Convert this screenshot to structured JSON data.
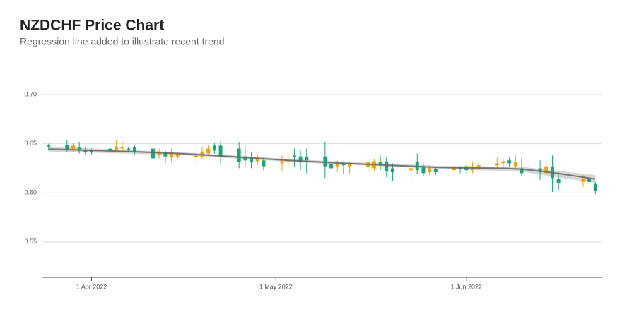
{
  "chart_data": {
    "type": "candlestick",
    "title": "NZDCHF Price Chart",
    "subtitle": "Regression line added to illustrate recent trend",
    "up_color": "#1aa67a",
    "down_color": "#f5a000",
    "trend_color": "#666666",
    "band_color": "#cccccc",
    "grid": true,
    "xlim": [
      "2022-03-24",
      "2022-06-23"
    ],
    "ylim": [
      0.514,
      0.72
    ],
    "yticks": [
      {
        "value": 0.55,
        "label": "0.55"
      },
      {
        "value": 0.6,
        "label": "0.60"
      },
      {
        "value": 0.65,
        "label": "0.65"
      },
      {
        "value": 0.7,
        "label": "0.70"
      }
    ],
    "xticks": [
      {
        "value": "2022-04-01",
        "label": "1 Apr 2022"
      },
      {
        "value": "2022-05-01",
        "label": "1 May 2022"
      },
      {
        "value": "2022-06-01",
        "label": "1 Jun 2022"
      }
    ],
    "x": [
      "2022-03-25",
      "2022-03-28",
      "2022-03-29",
      "2022-03-30",
      "2022-03-31",
      "2022-04-01",
      "2022-04-04",
      "2022-04-05",
      "2022-04-06",
      "2022-04-07",
      "2022-04-08",
      "2022-04-11",
      "2022-04-12",
      "2022-04-13",
      "2022-04-14",
      "2022-04-15",
      "2022-04-18",
      "2022-04-19",
      "2022-04-20",
      "2022-04-21",
      "2022-04-22",
      "2022-04-25",
      "2022-04-26",
      "2022-04-27",
      "2022-04-28",
      "2022-04-29",
      "2022-05-02",
      "2022-05-03",
      "2022-05-04",
      "2022-05-05",
      "2022-05-06",
      "2022-05-09",
      "2022-05-10",
      "2022-05-11",
      "2022-05-12",
      "2022-05-13",
      "2022-05-16",
      "2022-05-17",
      "2022-05-18",
      "2022-05-19",
      "2022-05-20",
      "2022-05-23",
      "2022-05-24",
      "2022-05-25",
      "2022-05-26",
      "2022-05-27",
      "2022-05-30",
      "2022-05-31",
      "2022-06-01",
      "2022-06-02",
      "2022-06-03",
      "2022-06-06",
      "2022-06-07",
      "2022-06-08",
      "2022-06-09",
      "2022-06-10",
      "2022-06-13",
      "2022-06-14",
      "2022-06-15",
      "2022-06-16",
      "2022-06-20",
      "2022-06-21",
      "2022-06-22"
    ],
    "open": [
      0.647,
      0.644,
      0.648,
      0.643,
      0.641,
      0.641,
      0.643,
      0.647,
      0.646,
      0.644,
      0.641,
      0.635,
      0.642,
      0.637,
      0.641,
      0.64,
      0.638,
      0.642,
      0.645,
      0.643,
      0.637,
      0.631,
      0.633,
      0.631,
      0.636,
      0.627,
      0.632,
      0.633,
      0.636,
      0.631,
      0.633,
      0.627,
      0.625,
      0.63,
      0.628,
      0.629,
      0.631,
      0.632,
      0.629,
      0.622,
      0.621,
      0.625,
      0.623,
      0.62,
      0.625,
      0.621,
      0.626,
      0.624,
      0.623,
      0.627,
      0.628,
      0.63,
      0.632,
      0.63,
      0.631,
      0.62,
      0.621,
      0.627,
      0.615,
      0.61,
      0.614,
      0.611,
      0.602
    ],
    "high": [
      0.65,
      0.654,
      0.651,
      0.652,
      0.647,
      0.645,
      0.648,
      0.654,
      0.652,
      0.647,
      0.648,
      0.648,
      0.645,
      0.644,
      0.645,
      0.642,
      0.644,
      0.647,
      0.649,
      0.651,
      0.652,
      0.652,
      0.648,
      0.641,
      0.639,
      0.636,
      0.638,
      0.64,
      0.645,
      0.643,
      0.645,
      0.652,
      0.632,
      0.633,
      0.632,
      0.632,
      0.632,
      0.634,
      0.638,
      0.636,
      0.63,
      0.628,
      0.64,
      0.63,
      0.628,
      0.626,
      0.63,
      0.627,
      0.63,
      0.631,
      0.632,
      0.636,
      0.635,
      0.636,
      0.638,
      0.635,
      0.633,
      0.631,
      0.638,
      0.621,
      0.618,
      0.616,
      0.611
    ],
    "low": [
      0.643,
      0.642,
      0.641,
      0.64,
      0.638,
      0.639,
      0.637,
      0.641,
      0.64,
      0.642,
      0.639,
      0.634,
      0.635,
      0.63,
      0.632,
      0.634,
      0.63,
      0.634,
      0.638,
      0.64,
      0.628,
      0.625,
      0.627,
      0.625,
      0.628,
      0.623,
      0.622,
      0.625,
      0.626,
      0.623,
      0.62,
      0.615,
      0.621,
      0.621,
      0.619,
      0.619,
      0.621,
      0.622,
      0.623,
      0.616,
      0.612,
      0.611,
      0.619,
      0.617,
      0.618,
      0.618,
      0.618,
      0.62,
      0.62,
      0.62,
      0.622,
      0.625,
      0.624,
      0.626,
      0.623,
      0.617,
      0.613,
      0.618,
      0.601,
      0.603,
      0.606,
      0.608,
      0.599
    ],
    "close": [
      0.649,
      0.649,
      0.644,
      0.646,
      0.644,
      0.644,
      0.645,
      0.644,
      0.645,
      0.645,
      0.646,
      0.645,
      0.638,
      0.641,
      0.636,
      0.637,
      0.636,
      0.637,
      0.64,
      0.648,
      0.648,
      0.645,
      0.637,
      0.635,
      0.632,
      0.633,
      0.63,
      0.632,
      0.638,
      0.637,
      0.637,
      0.637,
      0.629,
      0.627,
      0.629,
      0.627,
      0.626,
      0.625,
      0.631,
      0.632,
      0.625,
      0.623,
      0.632,
      0.626,
      0.621,
      0.624,
      0.623,
      0.626,
      0.627,
      0.623,
      0.625,
      0.628,
      0.63,
      0.633,
      0.627,
      0.625,
      0.625,
      0.62,
      0.627,
      0.614,
      0.611,
      0.614,
      0.609
    ],
    "trend": {
      "x": [
        "2022-03-25",
        "2022-04-15",
        "2022-05-06",
        "2022-05-27",
        "2022-06-10",
        "2022-06-22"
      ],
      "values": [
        0.6445,
        0.64,
        0.632,
        0.626,
        0.624,
        0.614
      ],
      "lower": [
        0.642,
        0.6385,
        0.6305,
        0.6245,
        0.6215,
        0.61
      ],
      "upper": [
        0.647,
        0.6415,
        0.6335,
        0.6275,
        0.6265,
        0.618
      ]
    }
  }
}
